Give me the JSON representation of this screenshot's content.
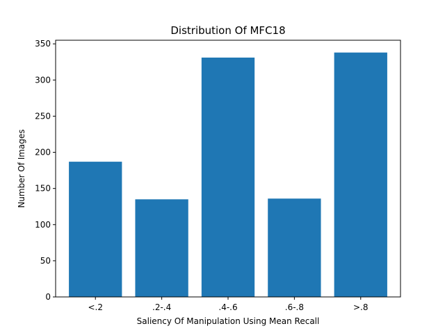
{
  "chart_data": {
    "type": "bar",
    "title": "Distribution Of MFC18",
    "xlabel": "Saliency Of Manipulation Using Mean Recall",
    "ylabel": "Number Of Images",
    "categories": [
      "<.2",
      ".2-.4",
      ".4-.6",
      ".6-.8",
      ">.8"
    ],
    "values": [
      187,
      135,
      331,
      136,
      338
    ],
    "ylim": [
      0,
      355
    ],
    "yticks": [
      0,
      50,
      100,
      150,
      200,
      250,
      300,
      350
    ],
    "bar_color": "#1f77b4",
    "grid": false
  }
}
